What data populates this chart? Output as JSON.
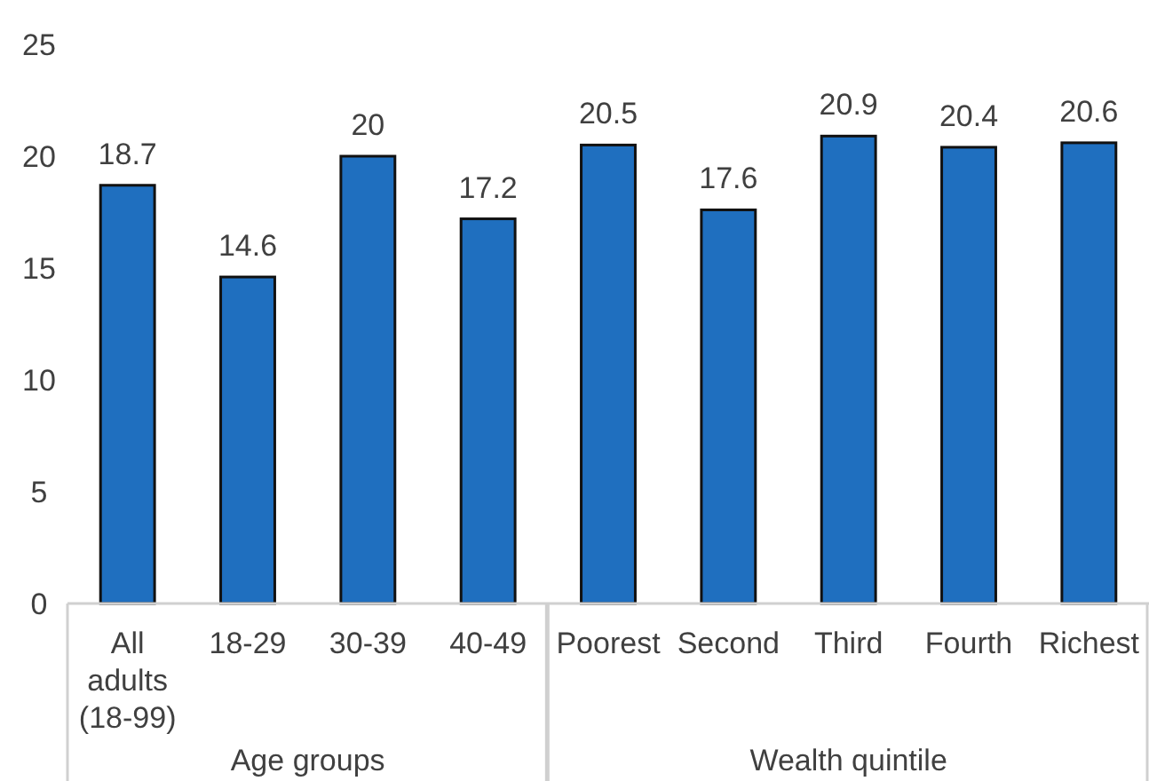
{
  "chart_data": {
    "type": "bar",
    "categories": [
      "All adults (18-99)",
      "18-29",
      "30-39",
      "40-49",
      "Poorest",
      "Second",
      "Third",
      "Fourth",
      "Richest"
    ],
    "values": [
      18.7,
      14.6,
      20,
      17.2,
      20.5,
      17.6,
      20.9,
      20.4,
      20.6
    ],
    "color": "#1f6fbf",
    "ylim": [
      0,
      25
    ],
    "yticks": [
      0,
      5,
      10,
      15,
      20,
      25
    ],
    "data_labels": true,
    "annotations": [
      "Age groups",
      "Wealth quintile"
    ]
  }
}
